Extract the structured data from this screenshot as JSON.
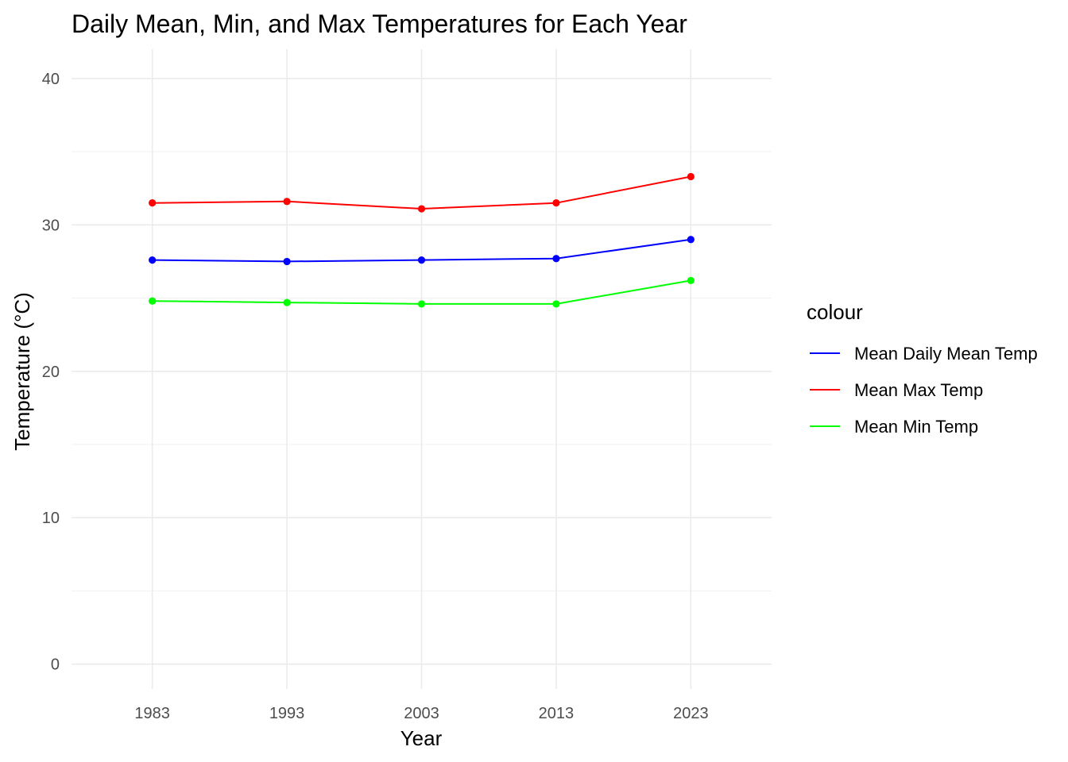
{
  "chart_data": {
    "type": "line",
    "title": "Daily Mean, Min, and Max Temperatures for Each Year",
    "xlabel": "Year",
    "ylabel": "Temperature (°C)",
    "x": [
      1983,
      1993,
      2003,
      2013,
      2023
    ],
    "x_tick_labels": [
      "1983",
      "1993",
      "2003",
      "2013",
      "2023"
    ],
    "y_ticks": [
      0,
      10,
      20,
      30,
      40
    ],
    "y_tick_labels": [
      "0",
      "10",
      "20",
      "30",
      "40"
    ],
    "xlim": [
      1977,
      2029
    ],
    "ylim": [
      -1.7,
      42
    ],
    "grid": true,
    "legend": {
      "title": "colour",
      "position": "right"
    },
    "series": [
      {
        "name": "Mean Daily Mean Temp",
        "color": "#0000ff",
        "values": [
          27.6,
          27.5,
          27.6,
          27.7,
          29.0
        ]
      },
      {
        "name": "Mean Max Temp",
        "color": "#ff0000",
        "values": [
          31.5,
          31.6,
          31.1,
          31.5,
          33.3
        ]
      },
      {
        "name": "Mean Min Temp",
        "color": "#00ff00",
        "values": [
          24.8,
          24.7,
          24.6,
          24.6,
          26.2
        ]
      }
    ]
  }
}
